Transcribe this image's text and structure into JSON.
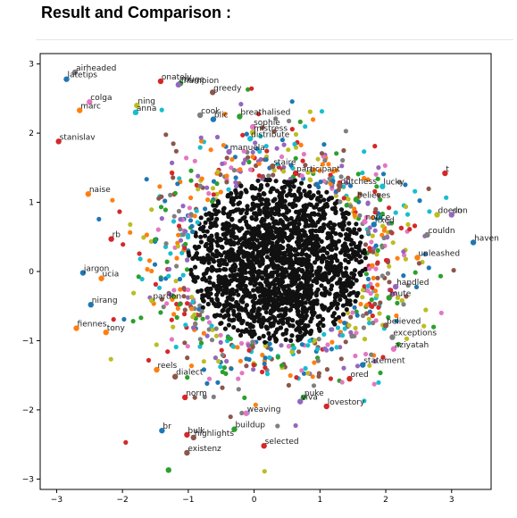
{
  "heading": "Result and Comparison :",
  "chart_data": {
    "type": "scatter",
    "title": "",
    "xlabel": "",
    "ylabel": "",
    "xlim": [
      -3.25,
      3.6
    ],
    "ylim": [
      -3.15,
      3.15
    ],
    "xticks": [
      -3,
      -2,
      -1,
      0,
      1,
      2,
      3
    ],
    "xtick_labels": [
      "−3",
      "−2",
      "−1",
      "0",
      "1",
      "2",
      "3"
    ],
    "yticks": [
      -3,
      -2,
      -1,
      0,
      1,
      2,
      3
    ],
    "ytick_labels": [
      "−3",
      "−2",
      "−1",
      "0",
      "1",
      "2",
      "3"
    ],
    "grid": false,
    "colors": [
      "#1f77b4",
      "#ff7f0e",
      "#2ca02c",
      "#d62728",
      "#9467bd",
      "#8c564b",
      "#e377c2",
      "#7f7f7f",
      "#bcbd22",
      "#17becf"
    ],
    "cloud": {
      "description_free": true,
      "center": [
        0.35,
        0.15
      ],
      "spread": [
        0.85,
        0.75
      ]
    },
    "labeled_points": [
      {
        "x": -2.72,
        "y": 2.88,
        "label": "airheaded",
        "color": "#7f7f7f"
      },
      {
        "x": -2.85,
        "y": 2.78,
        "label": "latetips",
        "color": "#1f77b4"
      },
      {
        "x": -1.42,
        "y": 2.75,
        "label": "onately",
        "color": "#d62728"
      },
      {
        "x": -1.12,
        "y": 2.72,
        "label": "rouge",
        "color": "#2ca02c"
      },
      {
        "x": -1.15,
        "y": 2.7,
        "label": "champion",
        "color": "#9467bd"
      },
      {
        "x": -0.63,
        "y": 2.59,
        "label": "greedy",
        "color": "#8c564b"
      },
      {
        "x": -2.5,
        "y": 2.45,
        "label": "colga",
        "color": "#e377c2"
      },
      {
        "x": -1.78,
        "y": 2.4,
        "label": "ning",
        "color": "#bcbd22"
      },
      {
        "x": -2.65,
        "y": 2.33,
        "label": "marc",
        "color": "#ff7f0e"
      },
      {
        "x": -1.8,
        "y": 2.3,
        "label": "anna",
        "color": "#17becf"
      },
      {
        "x": -0.82,
        "y": 2.26,
        "label": "cook",
        "color": "#7f7f7f"
      },
      {
        "x": -0.62,
        "y": 2.2,
        "label": "blic",
        "color": "#1f77b4"
      },
      {
        "x": -0.22,
        "y": 2.24,
        "label": "breathalised",
        "color": "#2ca02c"
      },
      {
        "x": -0.02,
        "y": 2.09,
        "label": "sophie",
        "color": "#e377c2"
      },
      {
        "x": -0.02,
        "y": 2.01,
        "label": "mistress",
        "color": "#bcbd22"
      },
      {
        "x": -0.06,
        "y": 1.92,
        "label": "distribute",
        "color": "#17becf"
      },
      {
        "x": -2.97,
        "y": 1.88,
        "label": "stanislav",
        "color": "#d62728"
      },
      {
        "x": -0.38,
        "y": 1.73,
        "label": "manuela",
        "color": "#9467bd"
      },
      {
        "x": 0.28,
        "y": 1.52,
        "label": "staire",
        "color": "#8c564b"
      },
      {
        "x": 0.63,
        "y": 1.42,
        "label": "participant",
        "color": "#d62728"
      },
      {
        "x": 1.3,
        "y": 1.24,
        "label": "dutchess",
        "color": "#8c564b"
      },
      {
        "x": 1.95,
        "y": 1.23,
        "label": "lucky",
        "color": "#17becf"
      },
      {
        "x": 2.9,
        "y": 1.42,
        "label": "t",
        "color": "#d62728"
      },
      {
        "x": -2.52,
        "y": 1.12,
        "label": "naise",
        "color": "#ff7f0e"
      },
      {
        "x": 1.55,
        "y": 1.04,
        "label": "believes",
        "color": "#2ca02c"
      },
      {
        "x": 2.78,
        "y": 0.82,
        "label": "doesn",
        "color": "#bcbd22"
      },
      {
        "x": 3.0,
        "y": 0.82,
        "label": "don",
        "color": "#9467bd"
      },
      {
        "x": 1.68,
        "y": 0.72,
        "label": "notice",
        "color": "#e377c2"
      },
      {
        "x": 1.82,
        "y": 0.68,
        "label": "fixed",
        "color": "#1f77b4"
      },
      {
        "x": 2.63,
        "y": 0.53,
        "label": "couldn",
        "color": "#7f7f7f"
      },
      {
        "x": 3.33,
        "y": 0.42,
        "label": "haven",
        "color": "#1f77b4"
      },
      {
        "x": -2.17,
        "y": 0.47,
        "label": "rb",
        "color": "#d62728"
      },
      {
        "x": -2.6,
        "y": -0.02,
        "label": "jargon",
        "color": "#1f77b4"
      },
      {
        "x": -2.32,
        "y": -0.1,
        "label": "ucia",
        "color": "#ff7f0e"
      },
      {
        "x": 2.48,
        "y": 0.2,
        "label": "unleashed",
        "color": "#ff7f0e"
      },
      {
        "x": 2.15,
        "y": -0.22,
        "label": "handled",
        "color": "#9467bd"
      },
      {
        "x": -2.48,
        "y": -0.48,
        "label": "nirang",
        "color": "#1f77b4"
      },
      {
        "x": -1.55,
        "y": -0.42,
        "label": "pardon",
        "color": "#bcbd22"
      },
      {
        "x": 2.05,
        "y": -0.38,
        "label": "mute",
        "color": "#2ca02c"
      },
      {
        "x": -2.7,
        "y": -0.82,
        "label": "fiennes",
        "color": "#ff7f0e"
      },
      {
        "x": -2.25,
        "y": -0.88,
        "label": "tony",
        "color": "#ff7f0e"
      },
      {
        "x": 2.0,
        "y": -0.78,
        "label": "believed",
        "color": "#8c564b"
      },
      {
        "x": 2.1,
        "y": -0.95,
        "label": "exceptions",
        "color": "#7f7f7f"
      },
      {
        "x": 2.12,
        "y": -1.12,
        "label": "aziyatah",
        "color": "#e377c2"
      },
      {
        "x": 1.65,
        "y": -1.35,
        "label": "statement",
        "color": "#1f77b4"
      },
      {
        "x": -1.48,
        "y": -1.42,
        "label": "reels",
        "color": "#ff7f0e"
      },
      {
        "x": -1.2,
        "y": -1.52,
        "label": "dialect",
        "color": "#8c564b"
      },
      {
        "x": 1.45,
        "y": -1.55,
        "label": "ored",
        "color": "#d62728"
      },
      {
        "x": -1.05,
        "y": -1.82,
        "label": "norm",
        "color": "#d62728"
      },
      {
        "x": 0.75,
        "y": -1.82,
        "label": "puke",
        "color": "#2ca02c"
      },
      {
        "x": 0.7,
        "y": -1.88,
        "label": "viva",
        "color": "#9467bd"
      },
      {
        "x": 1.1,
        "y": -1.95,
        "label": "lovestory",
        "color": "#d62728"
      },
      {
        "x": -0.12,
        "y": -2.05,
        "label": "weaving",
        "color": "#e377c2"
      },
      {
        "x": -0.3,
        "y": -2.28,
        "label": "buildup",
        "color": "#2ca02c"
      },
      {
        "x": -1.4,
        "y": -2.3,
        "label": "br",
        "color": "#1f77b4"
      },
      {
        "x": -1.02,
        "y": -2.36,
        "label": "bulk",
        "color": "#d62728"
      },
      {
        "x": -0.92,
        "y": -2.4,
        "label": "highlights",
        "color": "#8c564b"
      },
      {
        "x": 0.15,
        "y": -2.52,
        "label": "selected",
        "color": "#d62728"
      },
      {
        "x": -1.02,
        "y": -2.62,
        "label": "existenz",
        "color": "#8c564b"
      },
      {
        "x": -1.3,
        "y": -2.87,
        "label": "",
        "color": "#2ca02c"
      }
    ]
  }
}
